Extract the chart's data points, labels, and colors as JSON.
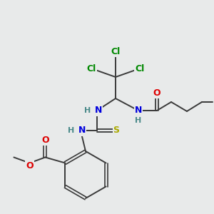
{
  "bg_color": "#e8eaea",
  "colors": {
    "bond": "#3a3a3a",
    "Cl": "#008800",
    "N": "#0000dd",
    "O": "#dd0000",
    "S": "#aaaa00",
    "H": "#4a8a8a"
  },
  "figsize": [
    3.0,
    3.0
  ],
  "dpi": 100
}
